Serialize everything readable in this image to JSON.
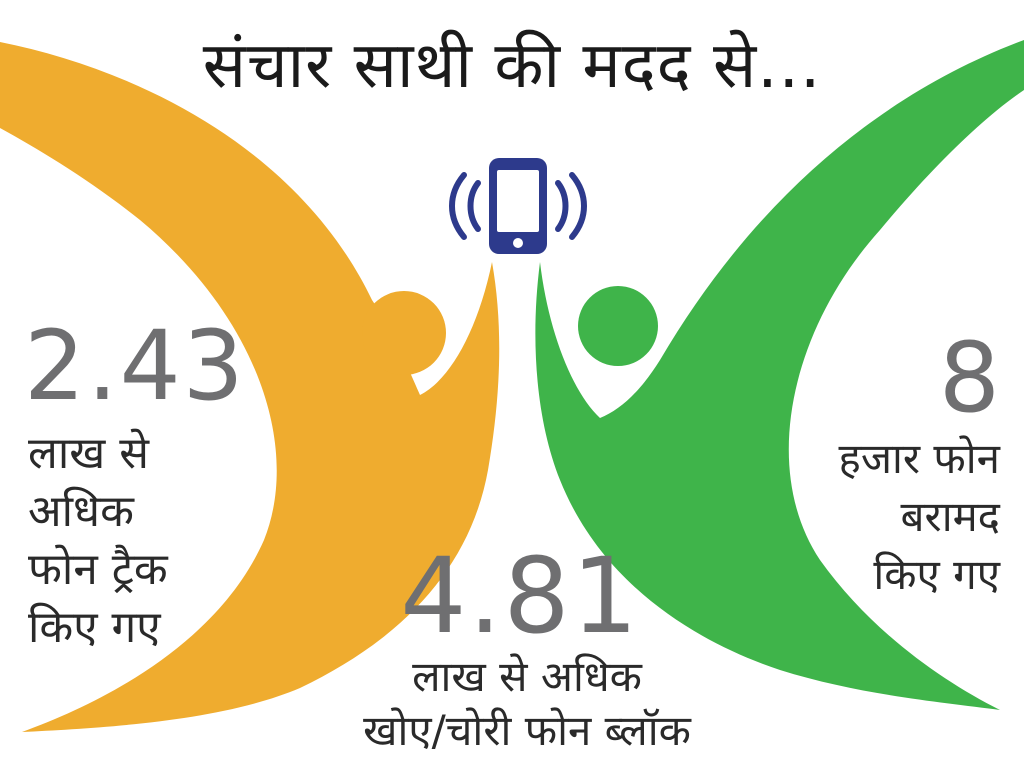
{
  "title": "संचार साथी की मदद से...",
  "colors": {
    "left_figure": "#efac2f",
    "right_figure": "#3fb44a",
    "phone": "#2d3a8c",
    "numbers": "#6f6f71"
  },
  "icon": "phone-vibrating-icon",
  "stats": {
    "left": {
      "value": "2.43",
      "lines": [
        "लाख से",
        "अधिक",
        "फोन ट्रैक",
        "किए गए"
      ]
    },
    "center": {
      "value": "4.81",
      "lines": [
        "लाख से अधिक",
        "खोए/चोरी फोन ब्लॉक"
      ]
    },
    "right": {
      "value": "8",
      "lines": [
        "हजार फोन",
        "बरामद",
        "किए गए"
      ]
    }
  }
}
